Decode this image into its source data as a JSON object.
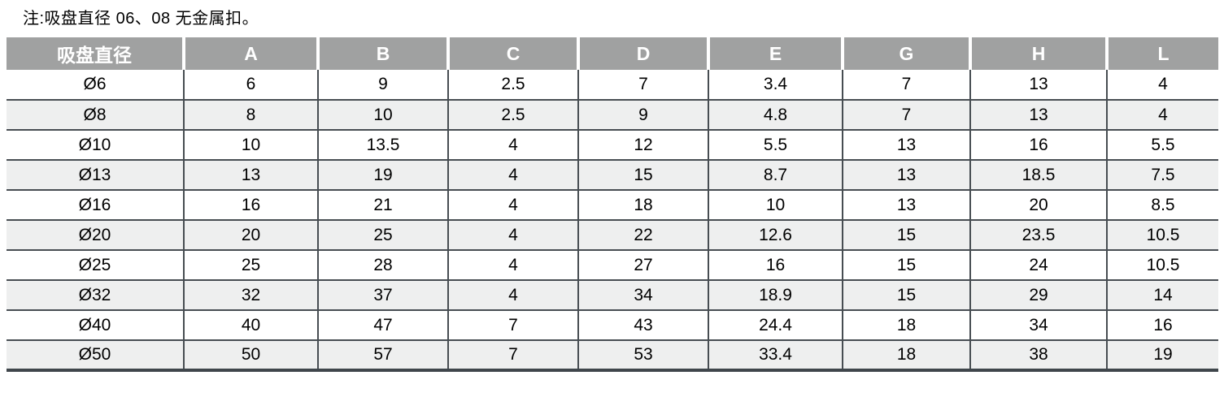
{
  "note": "注:吸盘直径 06、08 无金属扣。",
  "table": {
    "headers": [
      "吸盘直径",
      "A",
      "B",
      "C",
      "D",
      "E",
      "G",
      "H",
      "L"
    ],
    "rows": [
      [
        "Ø6",
        "6",
        "9",
        "2.5",
        "7",
        "3.4",
        "7",
        "13",
        "4"
      ],
      [
        "Ø8",
        "8",
        "10",
        "2.5",
        "9",
        "4.8",
        "7",
        "13",
        "4"
      ],
      [
        "Ø10",
        "10",
        "13.5",
        "4",
        "12",
        "5.5",
        "13",
        "16",
        "5.5"
      ],
      [
        "Ø13",
        "13",
        "19",
        "4",
        "15",
        "8.7",
        "13",
        "18.5",
        "7.5"
      ],
      [
        "Ø16",
        "16",
        "21",
        "4",
        "18",
        "10",
        "13",
        "20",
        "8.5"
      ],
      [
        "Ø20",
        "20",
        "25",
        "4",
        "22",
        "12.6",
        "15",
        "23.5",
        "10.5"
      ],
      [
        "Ø25",
        "25",
        "28",
        "4",
        "27",
        "16",
        "15",
        "24",
        "10.5"
      ],
      [
        "Ø32",
        "32",
        "37",
        "4",
        "34",
        "18.9",
        "15",
        "29",
        "14"
      ],
      [
        "Ø40",
        "40",
        "47",
        "7",
        "43",
        "24.4",
        "18",
        "34",
        "16"
      ],
      [
        "Ø50",
        "50",
        "57",
        "7",
        "53",
        "33.4",
        "18",
        "38",
        "19"
      ]
    ]
  },
  "colors": {
    "header_bg": "#a0a1a1",
    "header_text": "#ffffff",
    "row_alt_bg": "#eeefef",
    "border": "#474d52",
    "border_heavy": "#3f464b",
    "text": "#000000"
  }
}
